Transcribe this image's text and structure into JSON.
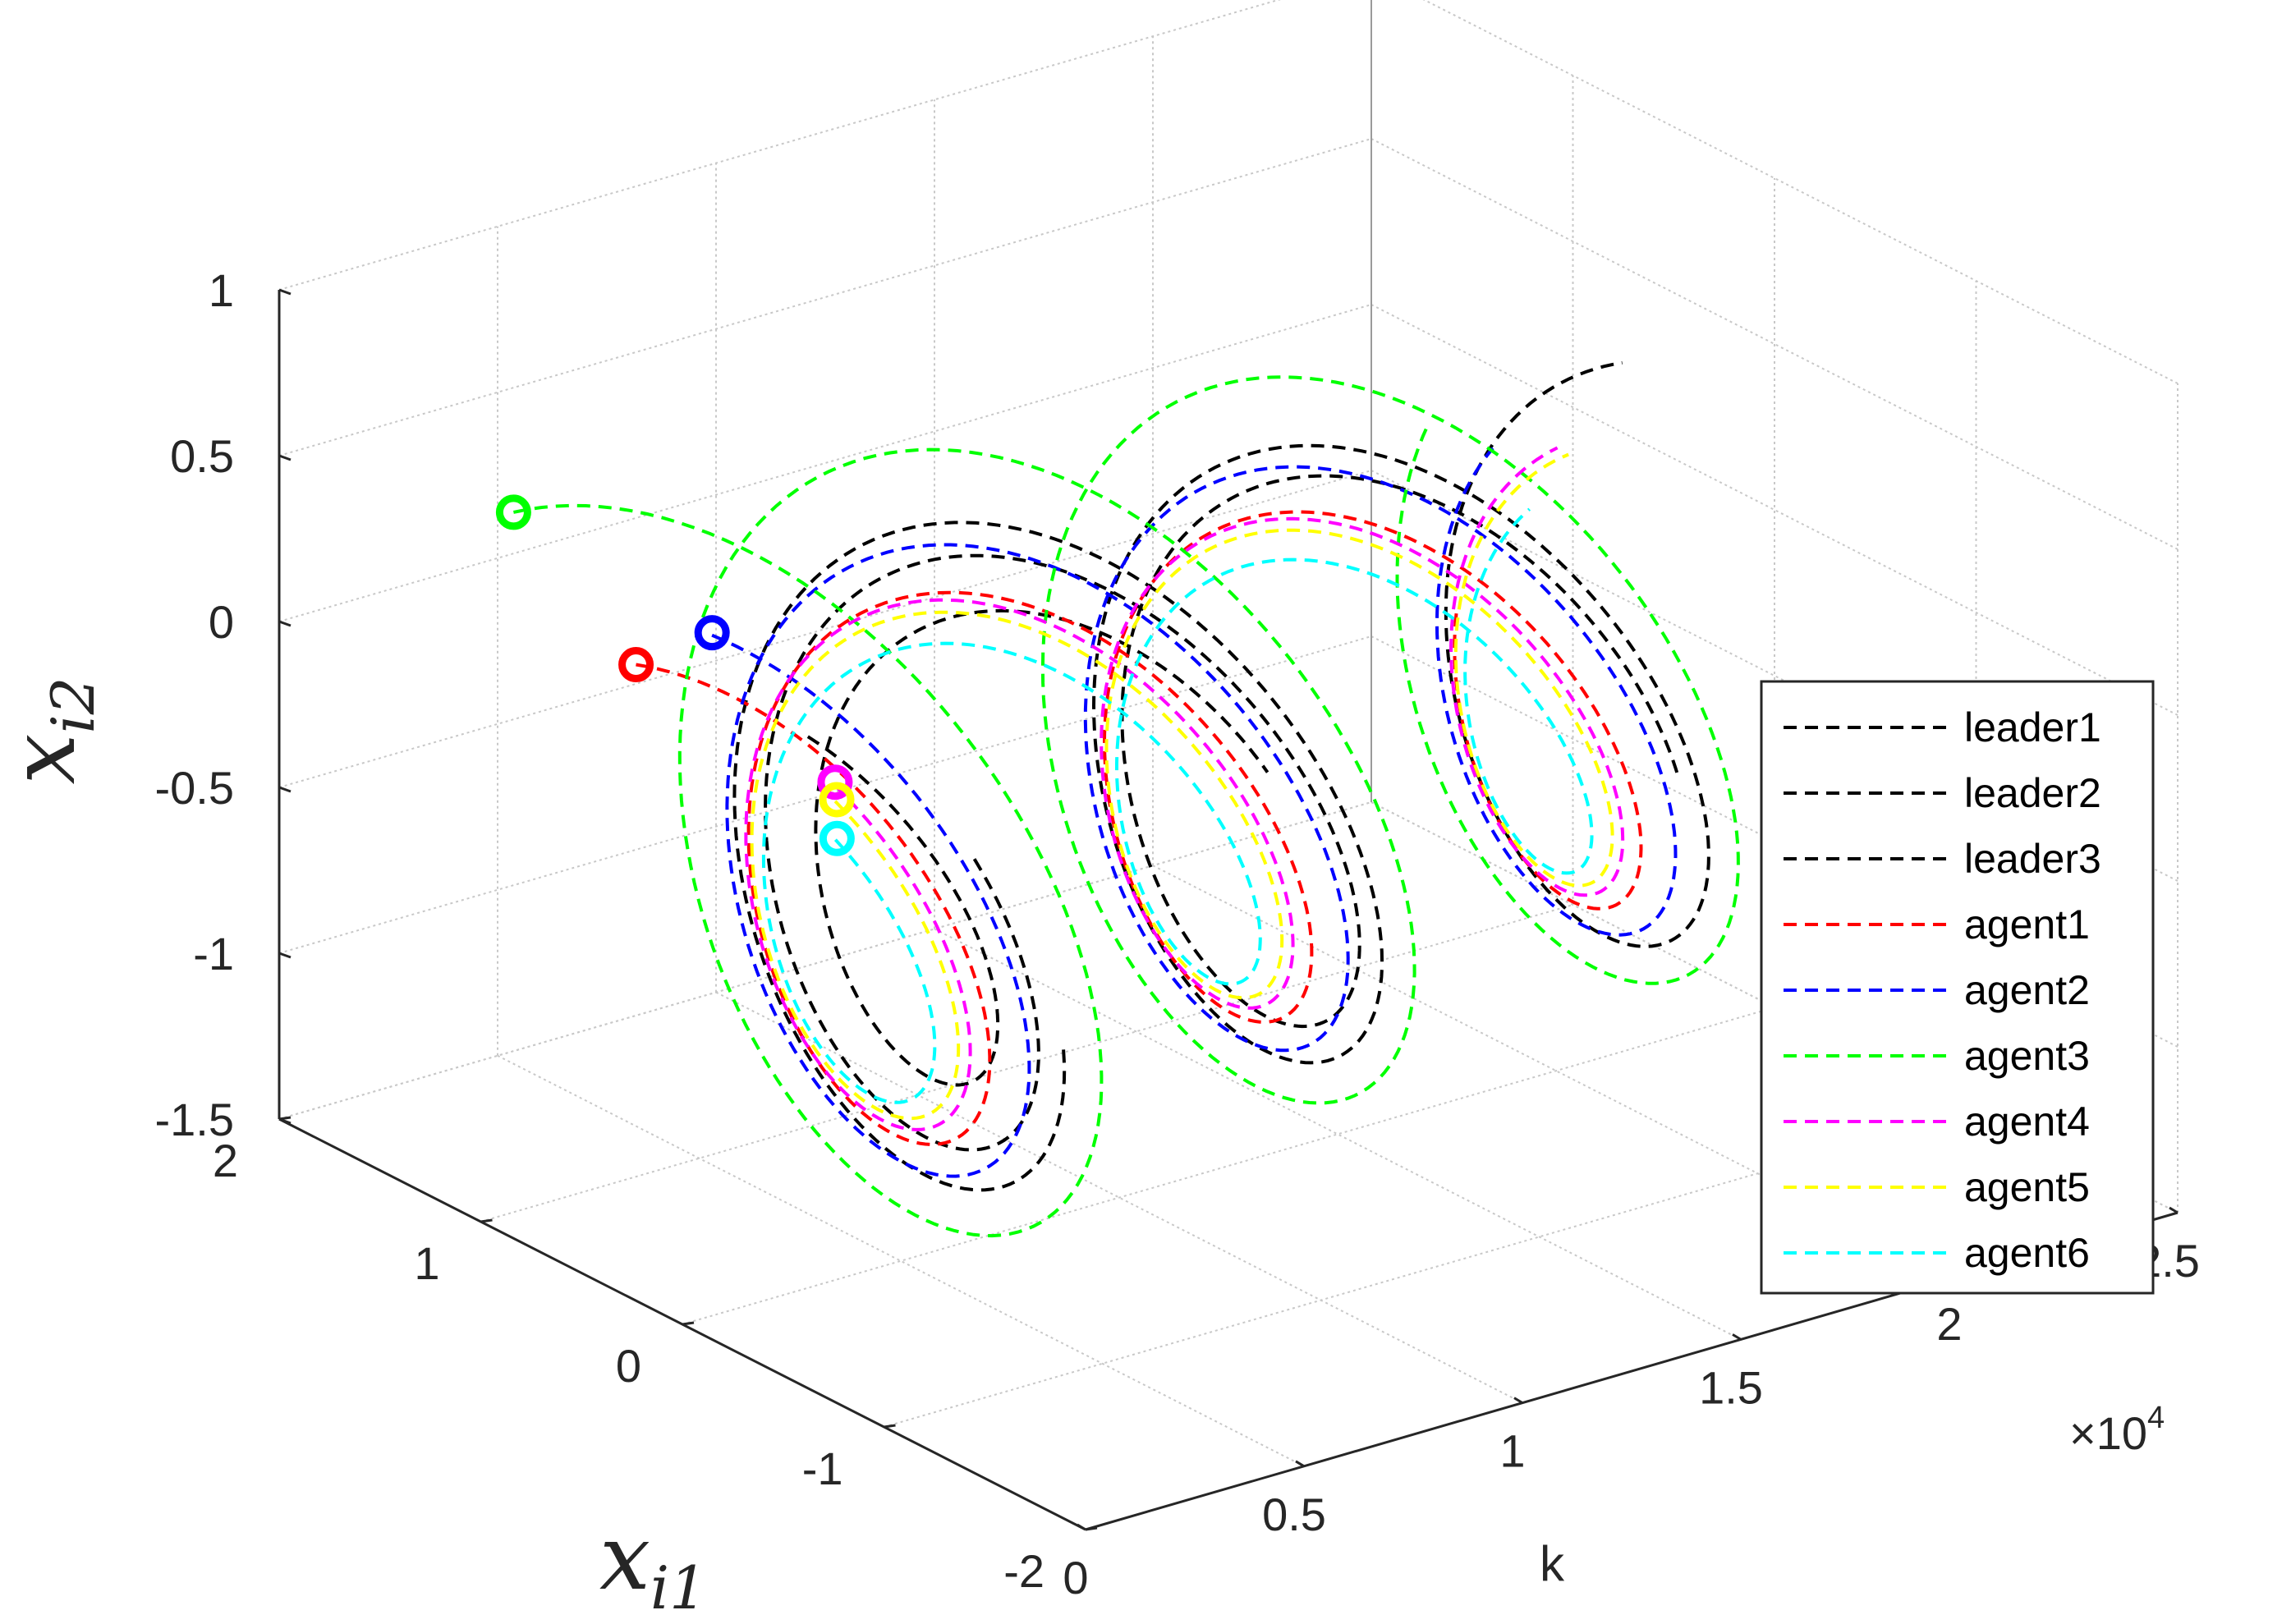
{
  "chart_data": {
    "type": "line3d",
    "title": "",
    "xlabel": "k",
    "ylabel": {
      "base": "x",
      "sub": "i1"
    },
    "zlabel": {
      "base": "x",
      "sub": "i2"
    },
    "x_multiplier": "×10",
    "x_multiplier_exp": "4",
    "xlim": [
      0,
      25000
    ],
    "ylim": [
      -2,
      2
    ],
    "zlim": [
      -1.5,
      1
    ],
    "x_ticks": [
      {
        "v": 0,
        "label": "0"
      },
      {
        "v": 5000,
        "label": "0.5"
      },
      {
        "v": 10000,
        "label": "1"
      },
      {
        "v": 15000,
        "label": "1.5"
      },
      {
        "v": 20000,
        "label": "2"
      },
      {
        "v": 25000,
        "label": "2.5"
      }
    ],
    "y_ticks": [
      {
        "v": -2,
        "label": "-2"
      },
      {
        "v": -1,
        "label": "-1"
      },
      {
        "v": 0,
        "label": "0"
      },
      {
        "v": 1,
        "label": "1"
      },
      {
        "v": 2,
        "label": "2"
      }
    ],
    "z_ticks": [
      {
        "v": -1.5,
        "label": "-1.5"
      },
      {
        "v": -1,
        "label": "-1"
      },
      {
        "v": -0.5,
        "label": "-0.5"
      },
      {
        "v": 0,
        "label": "0"
      },
      {
        "v": 0.5,
        "label": "0.5"
      },
      {
        "v": 1,
        "label": "1"
      }
    ],
    "grid": true,
    "legend_position": "east",
    "series": [
      {
        "name": "leader1",
        "color": "#000000",
        "k_start": 1800,
        "k_end": 10500,
        "amplitude": 0.9,
        "phase": 0.45,
        "period": 7800,
        "y_offset": 0.05,
        "z_offset": -0.32,
        "start_marker": false
      },
      {
        "name": "leader2",
        "color": "#000000",
        "k_start": 2300,
        "k_end": 18500,
        "amplitude": 1.15,
        "phase": 0.75,
        "period": 7800,
        "y_offset": 0.0,
        "z_offset": -0.3,
        "start_marker": false
      },
      {
        "name": "leader3",
        "color": "#000000",
        "k_start": 2800,
        "k_end": 23500,
        "amplitude": 1.3,
        "phase": 1.0,
        "period": 7800,
        "y_offset": -0.05,
        "z_offset": -0.28,
        "start_marker": false
      },
      {
        "name": "agent1",
        "color": "#ff0000",
        "k_start": 0,
        "k_end": 21500,
        "amplitude": 1.05,
        "phase": 1.35,
        "period": 7800,
        "y_offset": 0.0,
        "z_offset": -0.32,
        "start_marker": true
      },
      {
        "name": "agent2",
        "color": "#0000ff",
        "k_start": 500,
        "k_end": 22500,
        "amplitude": 1.22,
        "phase": 1.2,
        "period": 7800,
        "y_offset": 0.0,
        "z_offset": -0.3,
        "start_marker": true
      },
      {
        "name": "agent3",
        "color": "#00ff00",
        "k_start": 0,
        "k_end": 22500,
        "amplitude": 1.55,
        "phase": 1.0,
        "period": 7800,
        "y_offset": 0.0,
        "z_offset": -0.25,
        "start_marker": true
      },
      {
        "name": "agent4",
        "color": "#ff00ff",
        "k_start": 800,
        "k_end": 22500,
        "amplitude": 1.0,
        "phase": 1.55,
        "period": 7800,
        "y_offset": 0.0,
        "z_offset": -0.3,
        "start_marker": true
      },
      {
        "name": "agent5",
        "color": "#ffff00",
        "k_start": 800,
        "k_end": 22500,
        "amplitude": 0.95,
        "phase": 1.6,
        "period": 7800,
        "y_offset": 0.0,
        "z_offset": -0.3,
        "start_marker": true
      },
      {
        "name": "agent6",
        "color": "#00ffff",
        "k_start": 800,
        "k_end": 22000,
        "amplitude": 0.85,
        "phase": 1.7,
        "period": 7800,
        "y_offset": 0.0,
        "z_offset": -0.32,
        "start_marker": true
      }
    ]
  }
}
